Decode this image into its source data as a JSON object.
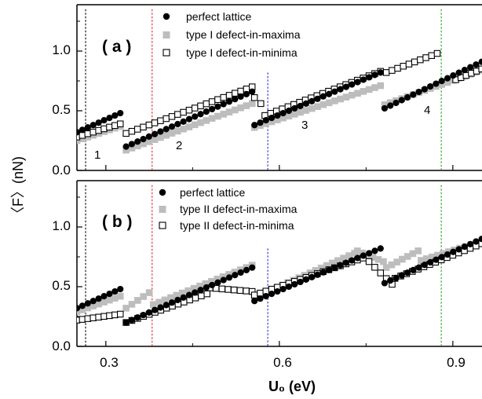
{
  "colors": {
    "perfect": "#000000",
    "maxima": "#bdbdbd",
    "minima": "#000000",
    "vline_black": "#000000",
    "vline_red": "#e0242a",
    "vline_blue": "#2a2ad6",
    "vline_green": "#20a020"
  },
  "shared": {
    "xlabel": "U₀ (eV)",
    "ylabel": "〈F〉(nN)",
    "xticks": [
      "0.3",
      "0.6",
      "0.9"
    ],
    "yticks": [
      "0.0",
      "0.5",
      "1.0"
    ]
  },
  "chart_data": [
    {
      "type": "scatter",
      "panel_label": "( a )",
      "xlabel": "U₀ (eV)",
      "ylabel": "〈F〉(nN)",
      "xlim": [
        0.25,
        0.95
      ],
      "ylim": [
        0.0,
        1.35
      ],
      "legend_position": "top-left",
      "vlines": [
        {
          "x": 0.265,
          "color": "black",
          "range": [
            0.0,
            1.35
          ]
        },
        {
          "x": 0.38,
          "color": "red",
          "range": [
            0.0,
            1.35
          ]
        },
        {
          "x": 0.58,
          "color": "blue",
          "range": [
            0.0,
            0.82
          ]
        },
        {
          "x": 0.88,
          "color": "green",
          "range": [
            0.0,
            1.35
          ]
        }
      ],
      "annotations": [
        {
          "text": "1",
          "x": 0.275,
          "y": 0.14
        },
        {
          "text": "2",
          "x": 0.41,
          "y": 0.38
        },
        {
          "text": "3",
          "x": 0.63,
          "y": 0.38
        },
        {
          "text": "4",
          "x": 0.83,
          "y": 0.53
        }
      ],
      "series": [
        {
          "name": "perfect lattice",
          "marker": "filled-circle",
          "segments": [
            {
              "x0": 0.25,
              "x1": 0.325,
              "y0": 0.32,
              "y1": 0.48
            },
            {
              "x0": 0.335,
              "x1": 0.553,
              "y0": 0.2,
              "y1": 0.66
            },
            {
              "x0": 0.557,
              "x1": 0.775,
              "y0": 0.38,
              "y1": 0.82
            },
            {
              "x0": 0.782,
              "x1": 0.95,
              "y0": 0.52,
              "y1": 0.91
            }
          ]
        },
        {
          "name": "type I defect-in-maxima",
          "marker": "gray-square",
          "segments": [
            {
              "x0": 0.25,
              "x1": 0.325,
              "y0": 0.25,
              "y1": 0.37
            },
            {
              "x0": 0.335,
              "x1": 0.553,
              "y0": 0.17,
              "y1": 0.56
            },
            {
              "x0": 0.557,
              "x1": 0.775,
              "y0": 0.36,
              "y1": 0.71
            },
            {
              "x0": 0.782,
              "x1": 0.95,
              "y0": 0.55,
              "y1": 0.84
            }
          ]
        },
        {
          "name": "type I defect-in-minima",
          "marker": "open-square",
          "segments": [
            {
              "x0": 0.25,
              "x1": 0.325,
              "y0": 0.28,
              "y1": 0.39
            },
            {
              "x0": 0.335,
              "x1": 0.553,
              "y0": 0.31,
              "y1": 0.7
            },
            {
              "x0": 0.557,
              "x1": 0.568,
              "y0": 0.61,
              "y1": 0.56
            },
            {
              "x0": 0.575,
              "x1": 0.775,
              "y0": 0.46,
              "y1": 0.83
            },
            {
              "x0": 0.785,
              "x1": 0.873,
              "y0": 0.82,
              "y1": 0.98
            },
            {
              "x0": 0.905,
              "x1": 0.95,
              "y0": 0.76,
              "y1": 0.85
            }
          ]
        }
      ]
    },
    {
      "type": "scatter",
      "panel_label": "( b )",
      "xlabel": "U₀ (eV)",
      "ylabel": "〈F〉(nN)",
      "xlim": [
        0.25,
        0.95
      ],
      "ylim": [
        0.0,
        1.35
      ],
      "legend_position": "top-left",
      "vlines": [
        {
          "x": 0.265,
          "color": "black",
          "range": [
            0.0,
            1.35
          ]
        },
        {
          "x": 0.38,
          "color": "red",
          "range": [
            0.0,
            1.35
          ]
        },
        {
          "x": 0.58,
          "color": "blue",
          "range": [
            0.0,
            0.82
          ]
        },
        {
          "x": 0.88,
          "color": "green",
          "range": [
            0.0,
            1.35
          ]
        }
      ],
      "annotations": [],
      "series": [
        {
          "name": "perfect lattice",
          "marker": "filled-circle",
          "segments": [
            {
              "x0": 0.25,
              "x1": 0.325,
              "y0": 0.32,
              "y1": 0.48
            },
            {
              "x0": 0.335,
              "x1": 0.553,
              "y0": 0.2,
              "y1": 0.66
            },
            {
              "x0": 0.557,
              "x1": 0.775,
              "y0": 0.38,
              "y1": 0.82
            },
            {
              "x0": 0.782,
              "x1": 0.95,
              "y0": 0.53,
              "y1": 0.9
            }
          ]
        },
        {
          "name": "type II defect-in-maxima",
          "marker": "gray-square",
          "segments": [
            {
              "x0": 0.25,
              "x1": 0.325,
              "y0": 0.29,
              "y1": 0.42
            },
            {
              "x0": 0.335,
              "x1": 0.375,
              "y0": 0.32,
              "y1": 0.45
            },
            {
              "x0": 0.382,
              "x1": 0.553,
              "y0": 0.35,
              "y1": 0.68
            },
            {
              "x0": 0.557,
              "x1": 0.73,
              "y0": 0.41,
              "y1": 0.78
            },
            {
              "x0": 0.735,
              "x1": 0.78,
              "y0": 0.8,
              "y1": 0.71
            },
            {
              "x0": 0.785,
              "x1": 0.84,
              "y0": 0.66,
              "y1": 0.8
            },
            {
              "x0": 0.845,
              "x1": 0.95,
              "y0": 0.72,
              "y1": 0.88
            }
          ]
        },
        {
          "name": "type II defect-in-minima",
          "marker": "open-square",
          "segments": [
            {
              "x0": 0.25,
              "x1": 0.325,
              "y0": 0.22,
              "y1": 0.27
            },
            {
              "x0": 0.335,
              "x1": 0.475,
              "y0": 0.2,
              "y1": 0.44
            },
            {
              "x0": 0.48,
              "x1": 0.553,
              "y0": 0.49,
              "y1": 0.46
            },
            {
              "x0": 0.557,
              "x1": 0.745,
              "y0": 0.43,
              "y1": 0.74
            },
            {
              "x0": 0.755,
              "x1": 0.795,
              "y0": 0.71,
              "y1": 0.52
            },
            {
              "x0": 0.8,
              "x1": 0.95,
              "y0": 0.57,
              "y1": 0.86
            }
          ]
        }
      ]
    }
  ]
}
